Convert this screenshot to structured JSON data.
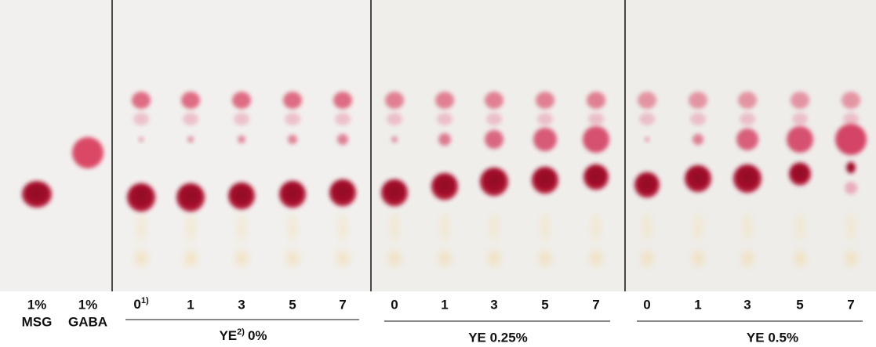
{
  "standards": [
    {
      "line1": "1%",
      "line2": "MSG"
    },
    {
      "line1": "1%",
      "line2": "GABA"
    }
  ],
  "groups": [
    {
      "lanes": [
        "0",
        "1",
        "3",
        "5",
        "7"
      ],
      "lane_note": "1)",
      "label_prefix": "YE",
      "label_note": "2)",
      "label_suffix": "0%"
    },
    {
      "lanes": [
        "0",
        "1",
        "3",
        "5",
        "7"
      ],
      "label": "YE 0.25%"
    },
    {
      "lanes": [
        "0",
        "1",
        "3",
        "5",
        "7"
      ],
      "label": "YE 0.5%"
    }
  ]
}
